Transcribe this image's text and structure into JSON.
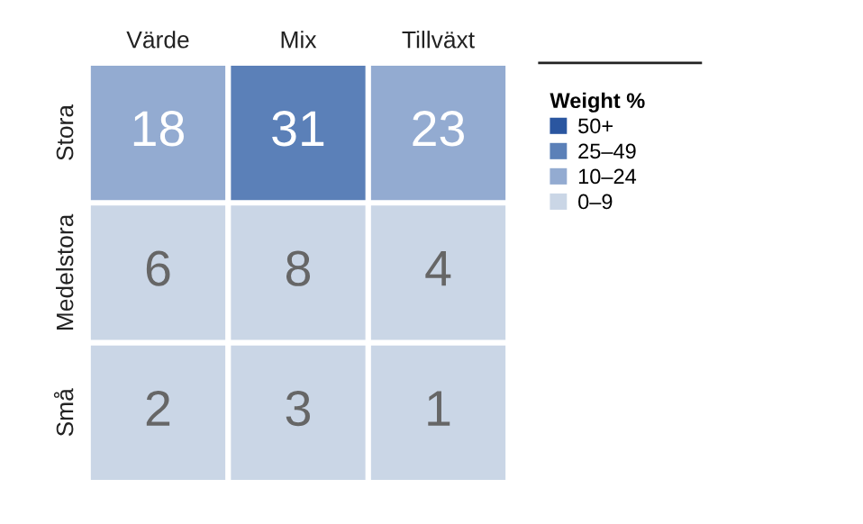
{
  "chart_data": {
    "type": "heatmap",
    "categories": [
      "Värde",
      "Mix",
      "Tillväxt"
    ],
    "y_categories": [
      "Stora",
      "Medelstora",
      "Små"
    ],
    "cells": [
      [
        18,
        31,
        23
      ],
      [
        6,
        8,
        4
      ],
      [
        2,
        3,
        1
      ]
    ],
    "colors": [
      [
        "#93abd1",
        "#5b80b8",
        "#93abd1"
      ],
      [
        "#cad6e6",
        "#cad6e6",
        "#cad6e6"
      ],
      [
        "#cad6e6",
        "#cad6e6",
        "#cad6e6"
      ]
    ],
    "data_labels": true,
    "legend": "right",
    "legend_title": "Weight %",
    "series": [
      {
        "name": "50+",
        "color": "#2a56a0",
        "values": [
          null,
          null,
          null
        ]
      },
      {
        "name": "25–49",
        "color": "#5b80b8",
        "values": [
          null,
          null,
          null
        ]
      },
      {
        "name": "10–24",
        "color": "#93abd1",
        "values": [
          null,
          null,
          null
        ]
      },
      {
        "name": "0–9",
        "color": "#cad6e6",
        "values": [
          null,
          null,
          null
        ]
      }
    ]
  }
}
